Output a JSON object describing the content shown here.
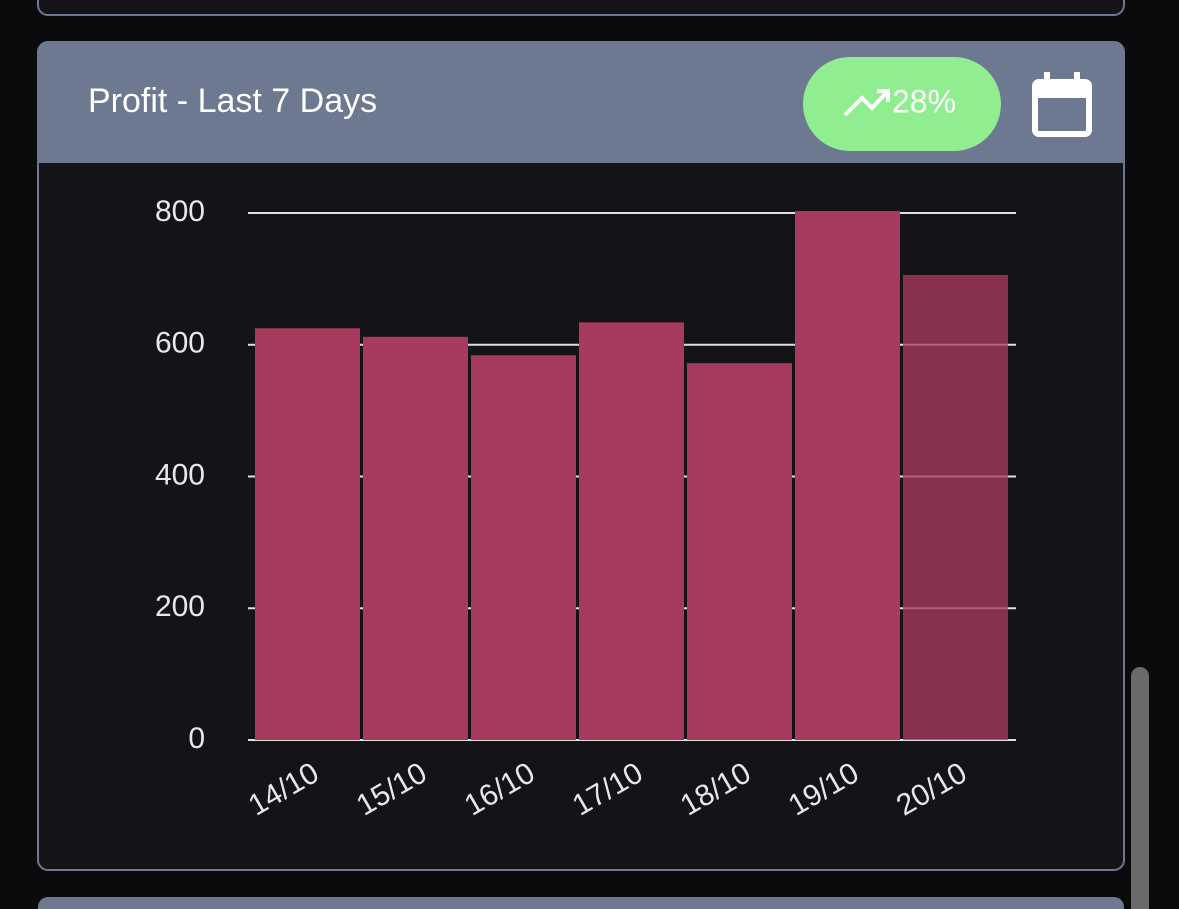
{
  "chart_data": {
    "type": "bar",
    "title": "Profit - Last 7 Days",
    "badge": "28%",
    "categories": [
      "14/10",
      "15/10",
      "16/10",
      "17/10",
      "18/10",
      "19/10",
      "20/10"
    ],
    "values": [
      625,
      612,
      584,
      634,
      572,
      803,
      706
    ],
    "colors": [
      "#a83a5e",
      "#a83a5e",
      "#a83a5e",
      "#a83a5e",
      "#a83a5e",
      "#a83a5e",
      "rgba(168,58,94,0.78)"
    ],
    "ylim": [
      0,
      800
    ],
    "yticks": [
      0,
      200,
      400,
      600,
      800
    ],
    "grid": true
  }
}
